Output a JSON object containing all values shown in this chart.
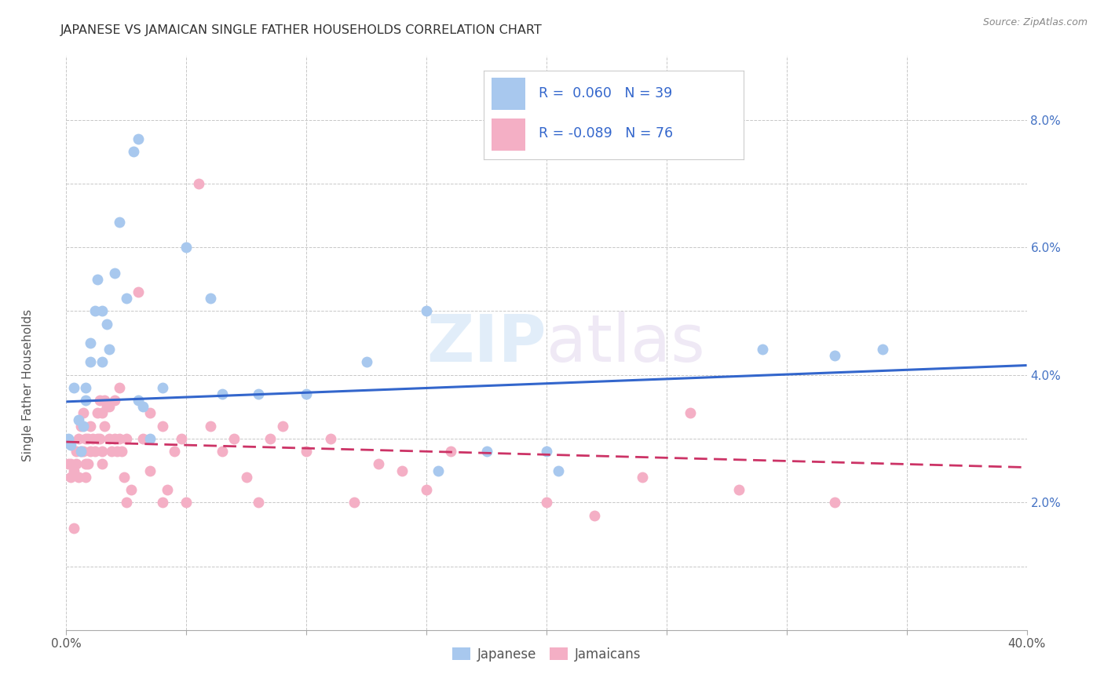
{
  "title": "JAPANESE VS JAMAICAN SINGLE FATHER HOUSEHOLDS CORRELATION CHART",
  "source": "Source: ZipAtlas.com",
  "ylabel": "Single Father Households",
  "xlim": [
    0.0,
    0.4
  ],
  "ylim": [
    0.0,
    0.09
  ],
  "xticks": [
    0.0,
    0.05,
    0.1,
    0.15,
    0.2,
    0.25,
    0.3,
    0.35,
    0.4
  ],
  "yticks": [
    0.0,
    0.01,
    0.02,
    0.03,
    0.04,
    0.05,
    0.06,
    0.07,
    0.08
  ],
  "ytick_labels": [
    "",
    "",
    "2.0%",
    "",
    "4.0%",
    "",
    "6.0%",
    "",
    "8.0%"
  ],
  "xtick_labels": [
    "0.0%",
    "",
    "",
    "",
    "",
    "",
    "",
    "",
    "40.0%"
  ],
  "background_color": "#ffffff",
  "watermark": "ZIPatlas",
  "legend_text_jp": "R =  0.060   N = 39",
  "legend_text_jm": "R = -0.089   N = 76",
  "japanese_color": "#a8c8ee",
  "jamaican_color": "#f4afc5",
  "japanese_line_color": "#3366cc",
  "jamaican_line_color": "#cc3366",
  "japanese_points": [
    [
      0.001,
      0.03
    ],
    [
      0.002,
      0.029
    ],
    [
      0.003,
      0.038
    ],
    [
      0.005,
      0.033
    ],
    [
      0.006,
      0.028
    ],
    [
      0.007,
      0.032
    ],
    [
      0.008,
      0.036
    ],
    [
      0.008,
      0.038
    ],
    [
      0.01,
      0.045
    ],
    [
      0.01,
      0.042
    ],
    [
      0.012,
      0.05
    ],
    [
      0.013,
      0.055
    ],
    [
      0.015,
      0.05
    ],
    [
      0.015,
      0.042
    ],
    [
      0.017,
      0.048
    ],
    [
      0.018,
      0.044
    ],
    [
      0.02,
      0.056
    ],
    [
      0.022,
      0.064
    ],
    [
      0.025,
      0.052
    ],
    [
      0.03,
      0.036
    ],
    [
      0.028,
      0.075
    ],
    [
      0.03,
      0.077
    ],
    [
      0.032,
      0.035
    ],
    [
      0.035,
      0.03
    ],
    [
      0.04,
      0.038
    ],
    [
      0.05,
      0.06
    ],
    [
      0.06,
      0.052
    ],
    [
      0.065,
      0.037
    ],
    [
      0.08,
      0.037
    ],
    [
      0.1,
      0.037
    ],
    [
      0.125,
      0.042
    ],
    [
      0.15,
      0.05
    ],
    [
      0.155,
      0.025
    ],
    [
      0.175,
      0.028
    ],
    [
      0.2,
      0.028
    ],
    [
      0.205,
      0.025
    ],
    [
      0.29,
      0.044
    ],
    [
      0.32,
      0.043
    ],
    [
      0.34,
      0.044
    ]
  ],
  "jamaican_points": [
    [
      0.001,
      0.026
    ],
    [
      0.002,
      0.026
    ],
    [
      0.002,
      0.024
    ],
    [
      0.003,
      0.025
    ],
    [
      0.003,
      0.016
    ],
    [
      0.004,
      0.028
    ],
    [
      0.004,
      0.026
    ],
    [
      0.005,
      0.03
    ],
    [
      0.005,
      0.024
    ],
    [
      0.006,
      0.032
    ],
    [
      0.006,
      0.028
    ],
    [
      0.007,
      0.034
    ],
    [
      0.007,
      0.028
    ],
    [
      0.008,
      0.03
    ],
    [
      0.008,
      0.026
    ],
    [
      0.008,
      0.024
    ],
    [
      0.009,
      0.03
    ],
    [
      0.009,
      0.026
    ],
    [
      0.01,
      0.032
    ],
    [
      0.01,
      0.028
    ],
    [
      0.011,
      0.03
    ],
    [
      0.012,
      0.028
    ],
    [
      0.013,
      0.034
    ],
    [
      0.013,
      0.03
    ],
    [
      0.014,
      0.036
    ],
    [
      0.014,
      0.03
    ],
    [
      0.015,
      0.034
    ],
    [
      0.015,
      0.028
    ],
    [
      0.015,
      0.026
    ],
    [
      0.016,
      0.036
    ],
    [
      0.016,
      0.032
    ],
    [
      0.017,
      0.035
    ],
    [
      0.018,
      0.035
    ],
    [
      0.018,
      0.03
    ],
    [
      0.019,
      0.028
    ],
    [
      0.02,
      0.036
    ],
    [
      0.02,
      0.03
    ],
    [
      0.021,
      0.028
    ],
    [
      0.022,
      0.038
    ],
    [
      0.022,
      0.03
    ],
    [
      0.023,
      0.028
    ],
    [
      0.024,
      0.024
    ],
    [
      0.025,
      0.03
    ],
    [
      0.025,
      0.02
    ],
    [
      0.027,
      0.022
    ],
    [
      0.03,
      0.053
    ],
    [
      0.032,
      0.03
    ],
    [
      0.035,
      0.034
    ],
    [
      0.035,
      0.025
    ],
    [
      0.04,
      0.032
    ],
    [
      0.04,
      0.02
    ],
    [
      0.042,
      0.022
    ],
    [
      0.045,
      0.028
    ],
    [
      0.048,
      0.03
    ],
    [
      0.05,
      0.02
    ],
    [
      0.055,
      0.07
    ],
    [
      0.06,
      0.032
    ],
    [
      0.065,
      0.028
    ],
    [
      0.07,
      0.03
    ],
    [
      0.075,
      0.024
    ],
    [
      0.08,
      0.02
    ],
    [
      0.085,
      0.03
    ],
    [
      0.09,
      0.032
    ],
    [
      0.1,
      0.028
    ],
    [
      0.11,
      0.03
    ],
    [
      0.12,
      0.02
    ],
    [
      0.13,
      0.026
    ],
    [
      0.14,
      0.025
    ],
    [
      0.15,
      0.022
    ],
    [
      0.16,
      0.028
    ],
    [
      0.2,
      0.02
    ],
    [
      0.22,
      0.018
    ],
    [
      0.24,
      0.024
    ],
    [
      0.26,
      0.034
    ],
    [
      0.28,
      0.022
    ],
    [
      0.32,
      0.02
    ]
  ],
  "japanese_trend": {
    "x_start": 0.0,
    "y_start": 0.0358,
    "x_end": 0.4,
    "y_end": 0.0415
  },
  "jamaican_trend": {
    "x_start": 0.0,
    "y_start": 0.0295,
    "x_end": 0.4,
    "y_end": 0.0255
  }
}
